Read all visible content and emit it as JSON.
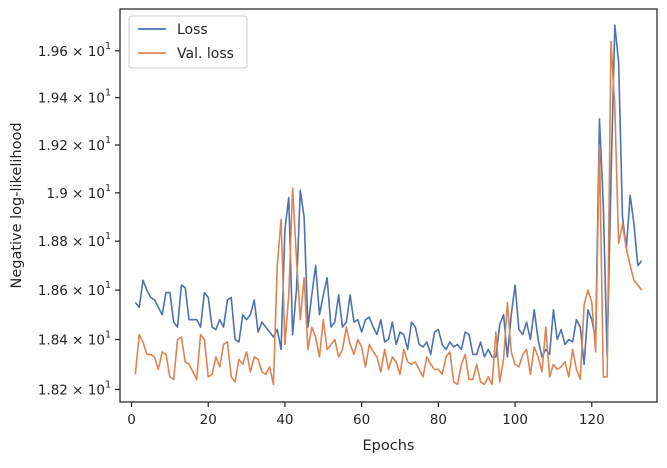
{
  "chart_data": {
    "type": "line",
    "xlabel": "Epochs",
    "ylabel": "Negative log-likelihood",
    "xlim": [
      -3,
      137
    ],
    "ylim": [
      18.15,
      19.78
    ],
    "yscale": "log",
    "x_ticks": [
      0,
      20,
      40,
      60,
      80,
      100,
      120
    ],
    "x_tick_labels": [
      "0",
      "20",
      "40",
      "60",
      "80",
      "100",
      "120"
    ],
    "y_ticks": [
      18.2,
      18.4,
      18.6,
      18.8,
      19.0,
      19.2,
      19.4,
      19.6
    ],
    "y_tick_labels": [
      {
        "mantissa": "1.82",
        "exponent": "1"
      },
      {
        "mantissa": "1.84",
        "exponent": "1"
      },
      {
        "mantissa": "1.86",
        "exponent": "1"
      },
      {
        "mantissa": "1.88",
        "exponent": "1"
      },
      {
        "mantissa": "1.9",
        "exponent": "1"
      },
      {
        "mantissa": "1.92",
        "exponent": "1"
      },
      {
        "mantissa": "1.94",
        "exponent": "1"
      },
      {
        "mantissa": "1.96",
        "exponent": "1"
      }
    ],
    "grid": false,
    "legend_position": "top-left",
    "series": [
      {
        "name": "Loss",
        "color": "#4c72b0",
        "x": [
          1,
          2,
          3,
          4,
          5,
          6,
          7,
          8,
          9,
          10,
          11,
          12,
          13,
          14,
          15,
          16,
          17,
          18,
          19,
          20,
          21,
          22,
          23,
          24,
          25,
          26,
          27,
          28,
          29,
          30,
          31,
          32,
          33,
          34,
          35,
          36,
          37,
          38,
          39,
          40,
          41,
          42,
          43,
          44,
          45,
          46,
          47,
          48,
          49,
          50,
          51,
          52,
          53,
          54,
          55,
          56,
          57,
          58,
          59,
          60,
          61,
          62,
          63,
          64,
          65,
          66,
          67,
          68,
          69,
          70,
          71,
          72,
          73,
          74,
          75,
          76,
          77,
          78,
          79,
          80,
          81,
          82,
          83,
          84,
          85,
          86,
          87,
          88,
          89,
          90,
          91,
          92,
          93,
          94,
          95,
          96,
          97,
          98,
          99,
          100,
          101,
          102,
          103,
          104,
          105,
          106,
          107,
          108,
          109,
          110,
          111,
          112,
          113,
          114,
          115,
          116,
          117,
          118,
          119,
          120,
          121,
          122,
          123,
          124,
          125,
          126,
          127,
          128,
          129,
          130,
          131,
          132,
          133
        ],
        "values": [
          18.55,
          18.53,
          18.64,
          18.6,
          18.57,
          18.56,
          18.53,
          18.5,
          18.59,
          18.59,
          18.47,
          18.45,
          18.62,
          18.61,
          18.48,
          18.48,
          18.48,
          18.45,
          18.59,
          18.57,
          18.45,
          18.44,
          18.48,
          18.45,
          18.56,
          18.57,
          18.4,
          18.39,
          18.5,
          18.48,
          18.5,
          18.56,
          18.43,
          18.47,
          18.45,
          18.43,
          18.41,
          18.44,
          18.36,
          18.85,
          18.98,
          18.42,
          18.6,
          19.01,
          18.9,
          18.45,
          18.58,
          18.7,
          18.5,
          18.58,
          18.65,
          18.45,
          18.47,
          18.58,
          18.45,
          18.47,
          18.58,
          18.47,
          18.48,
          18.43,
          18.48,
          18.49,
          18.45,
          18.42,
          18.48,
          18.39,
          18.4,
          18.47,
          18.38,
          18.43,
          18.42,
          18.36,
          18.47,
          18.45,
          18.38,
          18.37,
          18.39,
          18.34,
          18.43,
          18.44,
          18.38,
          18.36,
          18.39,
          18.37,
          18.38,
          18.36,
          18.43,
          18.42,
          18.34,
          18.34,
          18.39,
          18.33,
          18.36,
          18.33,
          18.33,
          18.46,
          18.5,
          18.33,
          18.5,
          18.62,
          18.44,
          18.42,
          18.47,
          18.4,
          18.52,
          18.4,
          18.33,
          18.36,
          18.34,
          18.52,
          18.4,
          18.44,
          18.38,
          18.4,
          18.39,
          18.48,
          18.45,
          18.3,
          18.52,
          18.48,
          18.4,
          19.31,
          18.95,
          18.33,
          19.05,
          19.71,
          19.55,
          18.9,
          18.77,
          18.99,
          18.87,
          18.7,
          18.72
        ]
      },
      {
        "name": "Val. loss",
        "color": "#dd8452",
        "x": [
          1,
          2,
          3,
          4,
          5,
          6,
          7,
          8,
          9,
          10,
          11,
          12,
          13,
          14,
          15,
          16,
          17,
          18,
          19,
          20,
          21,
          22,
          23,
          24,
          25,
          26,
          27,
          28,
          29,
          30,
          31,
          32,
          33,
          34,
          35,
          36,
          37,
          38,
          39,
          40,
          41,
          42,
          43,
          44,
          45,
          46,
          47,
          48,
          49,
          50,
          51,
          52,
          53,
          54,
          55,
          56,
          57,
          58,
          59,
          60,
          61,
          62,
          63,
          64,
          65,
          66,
          67,
          68,
          69,
          70,
          71,
          72,
          73,
          74,
          75,
          76,
          77,
          78,
          79,
          80,
          81,
          82,
          83,
          84,
          85,
          86,
          87,
          88,
          89,
          90,
          91,
          92,
          93,
          94,
          95,
          96,
          97,
          98,
          99,
          100,
          101,
          102,
          103,
          104,
          105,
          106,
          107,
          108,
          109,
          110,
          111,
          112,
          113,
          114,
          115,
          116,
          117,
          118,
          119,
          120,
          121,
          122,
          123,
          124,
          125,
          126,
          127,
          128,
          129,
          130,
          131,
          132,
          133
        ],
        "values": [
          18.26,
          18.42,
          18.39,
          18.34,
          18.34,
          18.33,
          18.28,
          18.35,
          18.34,
          18.25,
          18.24,
          18.4,
          18.41,
          18.31,
          18.3,
          18.27,
          18.24,
          18.42,
          18.4,
          18.25,
          18.26,
          18.33,
          18.29,
          18.38,
          18.39,
          18.25,
          18.23,
          18.32,
          18.3,
          18.35,
          18.27,
          18.33,
          18.32,
          18.27,
          18.26,
          18.29,
          18.22,
          18.7,
          18.89,
          18.38,
          18.58,
          19.02,
          18.73,
          18.48,
          18.65,
          18.36,
          18.45,
          18.41,
          18.33,
          18.48,
          18.36,
          18.38,
          18.4,
          18.33,
          18.36,
          18.45,
          18.38,
          18.34,
          18.4,
          18.37,
          18.29,
          18.38,
          18.35,
          18.33,
          18.27,
          18.36,
          18.28,
          18.33,
          18.31,
          18.26,
          18.36,
          18.31,
          18.3,
          18.31,
          18.28,
          18.25,
          18.33,
          18.3,
          18.28,
          18.28,
          18.26,
          18.33,
          18.35,
          18.23,
          18.22,
          18.3,
          18.34,
          18.24,
          18.24,
          18.3,
          18.23,
          18.22,
          18.25,
          18.22,
          18.43,
          18.23,
          18.32,
          18.55,
          18.35,
          18.3,
          18.29,
          18.34,
          18.36,
          18.26,
          18.37,
          18.33,
          18.27,
          18.45,
          18.25,
          18.3,
          18.28,
          18.29,
          18.31,
          18.25,
          18.36,
          18.28,
          18.24,
          18.54,
          18.6,
          18.55,
          18.35,
          19.2,
          18.25,
          18.25,
          19.64,
          19.36,
          18.79,
          18.87,
          18.77,
          18.7,
          18.64,
          18.62,
          18.6
        ]
      }
    ]
  }
}
